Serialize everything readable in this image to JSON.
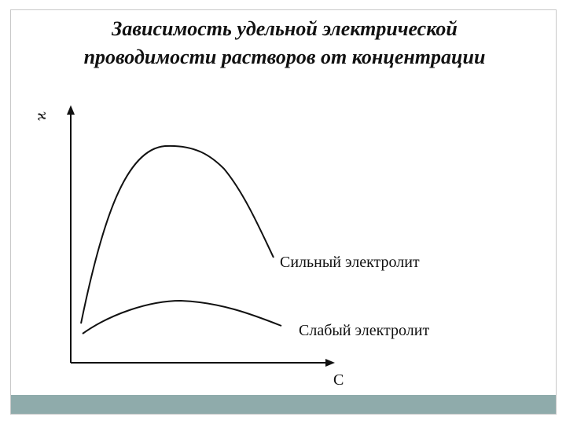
{
  "title": {
    "line1": "Зависимость удельной электрической",
    "line2": "проводимости растворов от концентрации"
  },
  "axes": {
    "y_label": "ϰ",
    "x_label": "C"
  },
  "curves": [
    {
      "label": "Сильный электролит"
    },
    {
      "label": "Слабый электролит"
    }
  ]
}
